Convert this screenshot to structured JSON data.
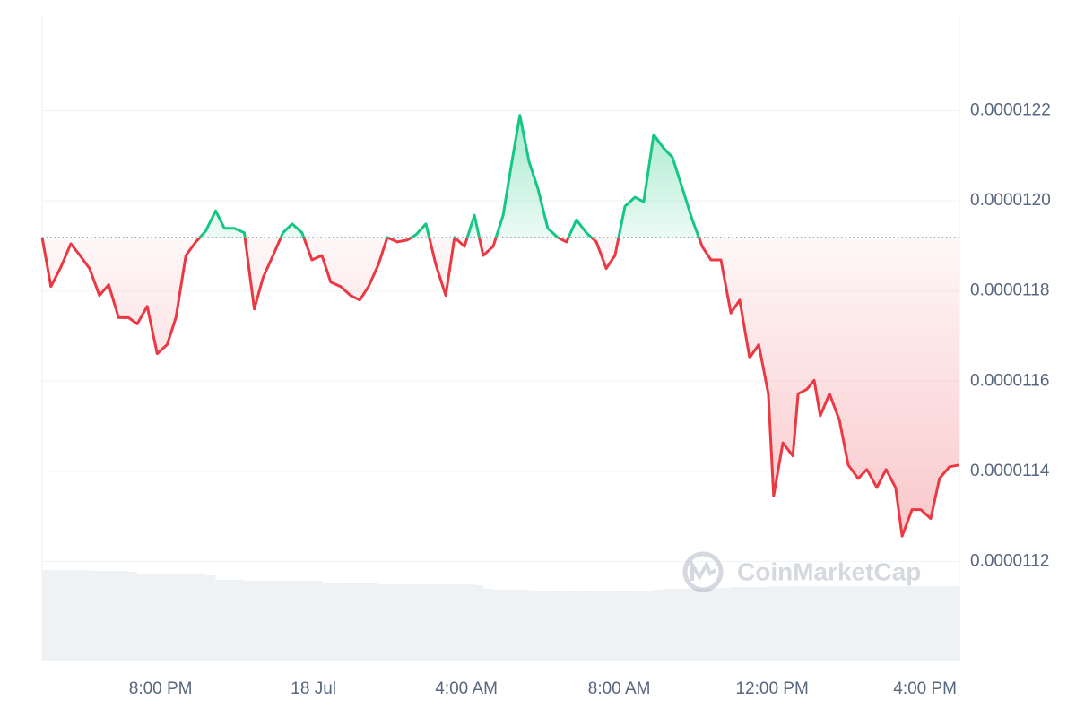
{
  "chart_data": {
    "type": "line",
    "x": [
      16.9,
      17.13,
      17.39,
      17.65,
      17.89,
      18.14,
      18.4,
      18.64,
      18.9,
      19.16,
      19.39,
      19.65,
      19.91,
      20.17,
      20.4,
      20.66,
      20.92,
      21.18,
      21.44,
      21.67,
      21.93,
      22.19,
      22.45,
      22.68,
      22.94,
      23.2,
      23.44,
      23.7,
      23.96,
      24.22,
      24.45,
      24.71,
      24.97,
      25.21,
      25.44,
      25.7,
      25.93,
      26.19,
      26.45,
      26.68,
      26.94,
      27.2,
      27.46,
      27.69,
      27.95,
      28.21,
      28.44,
      28.7,
      28.96,
      29.19,
      29.4,
      29.64,
      29.87,
      30.13,
      30.39,
      30.62,
      30.88,
      31.14,
      31.4,
      31.66,
      31.89,
      32.15,
      32.41,
      32.64,
      32.9,
      33.16,
      33.39,
      33.65,
      33.91,
      34.17,
      34.4,
      34.66,
      34.92,
      35.15,
      35.41,
      35.65,
      35.9,
      36.04,
      36.28,
      36.54,
      36.68,
      36.91,
      37.1,
      37.26,
      37.5,
      37.76,
      37.99,
      38.25,
      38.48,
      38.74,
      38.98,
      39.23,
      39.4,
      39.66,
      39.89,
      40.15,
      40.38,
      40.64,
      40.9
    ],
    "values": [
      1.1919e-05,
      1.181e-05,
      1.1853e-05,
      1.1905e-05,
      1.1879e-05,
      1.185e-05,
      1.179e-05,
      1.1814e-05,
      1.1741e-05,
      1.1741e-05,
      1.1727e-05,
      1.1766e-05,
      1.1661e-05,
      1.1681e-05,
      1.1741e-05,
      1.1879e-05,
      1.1909e-05,
      1.1933e-05,
      1.1978e-05,
      1.1939e-05,
      1.1939e-05,
      1.1929e-05,
      1.176e-05,
      1.183e-05,
      1.1879e-05,
      1.1929e-05,
      1.1949e-05,
      1.1929e-05,
      1.1869e-05,
      1.1879e-05,
      1.182e-05,
      1.181e-05,
      1.179e-05,
      1.178e-05,
      1.181e-05,
      1.1859e-05,
      1.1919e-05,
      1.1909e-05,
      1.1913e-05,
      1.1925e-05,
      1.1949e-05,
      1.1859e-05,
      1.179e-05,
      1.1919e-05,
      1.1899e-05,
      1.1968e-05,
      1.1879e-05,
      1.1899e-05,
      1.1968e-05,
      1.2087e-05,
      1.219e-05,
      1.2087e-05,
      1.2028e-05,
      1.1939e-05,
      1.1919e-05,
      1.1909e-05,
      1.1958e-05,
      1.1929e-05,
      1.1909e-05,
      1.185e-05,
      1.1879e-05,
      1.1988e-05,
      1.2008e-05,
      1.1998e-05,
      1.2147e-05,
      1.2117e-05,
      1.2097e-05,
      1.2028e-05,
      1.1958e-05,
      1.1899e-05,
      1.1869e-05,
      1.1869e-05,
      1.1751e-05,
      1.178e-05,
      1.1652e-05,
      1.1681e-05,
      1.1572e-05,
      1.1345e-05,
      1.1463e-05,
      1.1434e-05,
      1.1572e-05,
      1.1582e-05,
      1.1602e-05,
      1.1523e-05,
      1.1572e-05,
      1.1513e-05,
      1.1414e-05,
      1.1384e-05,
      1.1404e-05,
      1.1364e-05,
      1.1404e-05,
      1.1364e-05,
      1.1256e-05,
      1.1315e-05,
      1.1315e-05,
      1.1295e-05,
      1.1384e-05,
      1.141e-05,
      1.1414e-05
    ],
    "baseline": 1.1919e-05,
    "up_color": "#16c784",
    "down_color": "#ea3943",
    "volume": [
      101,
      101,
      101,
      101,
      101,
      100,
      100,
      100,
      100,
      99,
      97,
      97,
      97,
      97,
      97,
      97,
      97,
      95,
      90,
      90,
      90,
      89,
      89,
      89,
      89,
      89,
      89,
      89,
      89,
      87,
      87,
      87,
      87,
      87,
      86,
      85,
      85,
      85,
      85,
      85,
      85,
      85,
      85,
      85,
      85,
      84,
      80,
      79,
      79,
      79,
      79,
      78,
      78,
      78,
      78,
      78,
      78,
      78,
      78,
      78,
      78,
      78,
      78,
      78,
      79,
      80,
      80,
      80,
      80,
      80,
      80,
      81,
      82,
      82,
      82,
      82,
      83,
      83,
      83,
      83,
      83,
      83,
      83,
      83,
      83,
      83,
      83,
      83,
      83,
      83,
      83,
      83,
      83,
      83,
      83,
      83,
      83,
      83,
      83
    ],
    "volume_ylim": [
      0,
      110
    ],
    "volume_color": "#eff2f5",
    "xlim": [
      16.9,
      40.9
    ],
    "xticks": [
      {
        "value": 20,
        "label": "8:00 PM"
      },
      {
        "value": 24,
        "label": "18 Jul"
      },
      {
        "value": 28,
        "label": "4:00 AM"
      },
      {
        "value": 32,
        "label": "8:00 AM"
      },
      {
        "value": 36,
        "label": "12:00 PM"
      },
      {
        "value": 40,
        "label": "4:00 PM"
      }
    ],
    "ylim": [
      1.098e-05,
      1.241e-05
    ],
    "yticks": [
      {
        "value": 1.12e-05,
        "label": "0.0000112"
      },
      {
        "value": 1.14e-05,
        "label": "0.0000114"
      },
      {
        "value": 1.16e-05,
        "label": "0.0000116"
      },
      {
        "value": 1.18e-05,
        "label": "0.0000118"
      },
      {
        "value": 1.2e-05,
        "label": "0.0000120"
      },
      {
        "value": 1.22e-05,
        "label": "0.0000122"
      }
    ],
    "grid": true,
    "watermark": "CoinMarketCap"
  }
}
